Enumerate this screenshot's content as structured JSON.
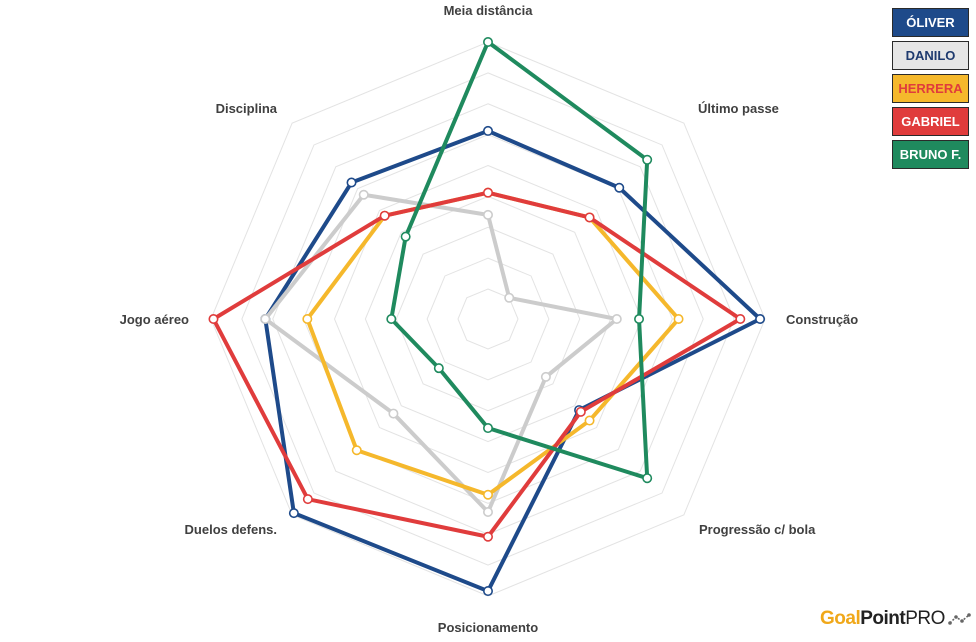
{
  "chart_data": {
    "type": "radar",
    "axes": [
      "Meia distância",
      "Último passe",
      "Construção",
      "Progressão c/ bola",
      "Posicionamento",
      "Duelos defens.",
      "Jogo aéreo",
      "Disciplina"
    ],
    "range": [
      0,
      1
    ],
    "grid_levels": 8,
    "grid": true,
    "legend_position": "top-right",
    "series": [
      {
        "name": "ÓLIVER",
        "color": "#1e4a8a",
        "values": [
          0.64,
          0.63,
          0.98,
          0.4,
          0.98,
          0.99,
          0.78,
          0.66
        ]
      },
      {
        "name": "DANILO",
        "color": "#cccccc",
        "values": [
          0.3,
          0.0,
          0.4,
          0.21,
          0.66,
          0.42,
          0.78,
          0.59
        ]
      },
      {
        "name": "HERRERA",
        "color": "#f5b82c",
        "values": [
          0.39,
          0.46,
          0.65,
          0.46,
          0.59,
          0.63,
          0.61,
          0.47
        ]
      },
      {
        "name": "GABRIEL",
        "color": "#e03c3c",
        "values": [
          0.39,
          0.46,
          0.9,
          0.41,
          0.76,
          0.91,
          0.99,
          0.47
        ]
      },
      {
        "name": "BRUNO F.",
        "color": "#1f8a5e",
        "values": [
          1.0,
          0.79,
          0.49,
          0.79,
          0.32,
          0.16,
          0.27,
          0.35
        ]
      }
    ]
  },
  "legend": {
    "items": [
      {
        "label": "ÓLIVER",
        "bg": "#1e4a8a",
        "fg": "#ffffff"
      },
      {
        "label": "DANILO",
        "bg": "#e6e6e6",
        "fg": "#1e3a6e"
      },
      {
        "label": "HERRERA",
        "bg": "#f5b82c",
        "fg": "#e03c3c"
      },
      {
        "label": "GABRIEL",
        "bg": "#e03c3c",
        "fg": "#ffffff"
      },
      {
        "label": "BRUNO F.",
        "bg": "#1f8a5e",
        "fg": "#ffffff"
      }
    ]
  },
  "logo": {
    "goal": "Goal",
    "point": "Point",
    "pro": "PRO"
  }
}
